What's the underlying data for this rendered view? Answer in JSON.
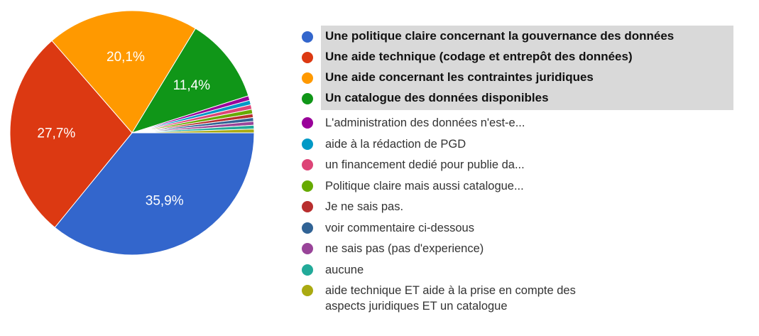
{
  "chart_data": {
    "type": "pie",
    "categories": [
      "Une politique claire concernant la gouvernance des données",
      "Une aide technique (codage et entrepôt des données)",
      "Une aide concernant les contraintes juridiques",
      "Un catalogue des données disponibles",
      "L'administration des données n'est-e...",
      "aide à la rédaction de PGD",
      "un financement dedié pour publie da...",
      "Politique claire mais aussi catalogue...",
      "Je ne sais pas.",
      "voir commentaire ci-dessous",
      "ne sais pas (pas d'experience)",
      "aucune",
      "aide technique ET aide à la prise en compte des aspects juridiques ET un catalogue"
    ],
    "values": [
      35.9,
      27.7,
      20.1,
      11.4,
      0.6,
      0.6,
      0.6,
      0.6,
      0.5,
      0.5,
      0.5,
      0.5,
      0.5
    ],
    "value_labels": [
      "35,9%",
      "27,7%",
      "20,1%",
      "11,4%",
      null,
      null,
      null,
      null,
      null,
      null,
      null,
      null,
      null
    ],
    "colors": [
      "#3366cc",
      "#dc3912",
      "#ff9900",
      "#109618",
      "#990099",
      "#0099c6",
      "#dd4477",
      "#66aa00",
      "#b82e2e",
      "#316395",
      "#994499",
      "#22aa99",
      "#aaaa11"
    ]
  }
}
